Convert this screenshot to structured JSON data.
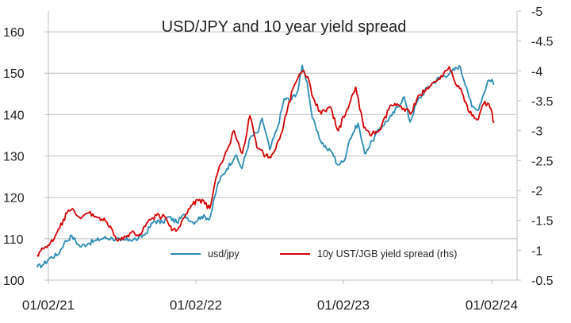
{
  "chart_data": {
    "type": "line",
    "title": "USD/JPY and 10 year yield spread",
    "xlabel": "",
    "ylabel": "",
    "x_tick_labels": [
      "01/02/21",
      "01/02/22",
      "01/02/23",
      "01/02/24"
    ],
    "y_left": {
      "ylim": [
        100,
        165
      ],
      "ticks": [
        100,
        110,
        120,
        130,
        140,
        150,
        160
      ],
      "tick_labels": [
        "100",
        "110",
        "120",
        "130",
        "140",
        "150",
        "160"
      ]
    },
    "y_right": {
      "ylim": [
        -0.5,
        -5
      ],
      "inverted": true,
      "ticks": [
        -0.5,
        -1,
        -1.5,
        -2,
        -2.5,
        -3,
        -3.5,
        -4,
        -4.5,
        -5
      ],
      "tick_labels": [
        "-0.5",
        "-1",
        "-1.5",
        "-2",
        "-2.5",
        "-3",
        "-3.5",
        "-4",
        "-4.5",
        "-5"
      ]
    },
    "grid": true,
    "legend_position": "bottom-right",
    "series": [
      {
        "name": "usd/jpy",
        "axis": "left",
        "color": "#2a8bb5",
        "points": [
          [
            "2021-01-04",
            103.1
          ],
          [
            "2021-01-20",
            103.8
          ],
          [
            "2021-02-05",
            105.4
          ],
          [
            "2021-02-25",
            106.2
          ],
          [
            "2021-03-12",
            109.0
          ],
          [
            "2021-03-31",
            110.7
          ],
          [
            "2021-04-20",
            108.1
          ],
          [
            "2021-05-10",
            108.9
          ],
          [
            "2021-05-31",
            109.6
          ],
          [
            "2021-06-18",
            110.2
          ],
          [
            "2021-07-09",
            110.1
          ],
          [
            "2021-07-30",
            109.5
          ],
          [
            "2021-08-20",
            109.8
          ],
          [
            "2021-09-10",
            109.9
          ],
          [
            "2021-09-30",
            111.3
          ],
          [
            "2021-10-20",
            114.3
          ],
          [
            "2021-11-10",
            113.9
          ],
          [
            "2021-11-24",
            115.3
          ],
          [
            "2021-12-15",
            114.0
          ],
          [
            "2022-01-04",
            115.8
          ],
          [
            "2022-01-24",
            113.9
          ],
          [
            "2022-02-14",
            115.4
          ],
          [
            "2022-03-07",
            115.0
          ],
          [
            "2022-03-28",
            123.7
          ],
          [
            "2022-04-18",
            126.9
          ],
          [
            "2022-05-09",
            130.2
          ],
          [
            "2022-05-25",
            127.0
          ],
          [
            "2022-06-15",
            134.5
          ],
          [
            "2022-07-05",
            135.9
          ],
          [
            "2022-07-14",
            139.1
          ],
          [
            "2022-08-02",
            131.5
          ],
          [
            "2022-08-22",
            137.3
          ],
          [
            "2022-09-07",
            143.9
          ],
          [
            "2022-09-22",
            143.5
          ],
          [
            "2022-10-10",
            145.6
          ],
          [
            "2022-10-21",
            151.9
          ],
          [
            "2022-11-02",
            147.9
          ],
          [
            "2022-11-15",
            139.2
          ],
          [
            "2022-12-02",
            134.3
          ],
          [
            "2022-12-20",
            131.8
          ],
          [
            "2023-01-03",
            130.9
          ],
          [
            "2023-01-16",
            127.9
          ],
          [
            "2023-02-01",
            128.7
          ],
          [
            "2023-02-15",
            134.0
          ],
          [
            "2023-03-08",
            137.9
          ],
          [
            "2023-03-24",
            130.6
          ],
          [
            "2023-04-12",
            133.6
          ],
          [
            "2023-05-02",
            136.9
          ],
          [
            "2023-05-30",
            139.7
          ],
          [
            "2023-06-30",
            144.3
          ],
          [
            "2023-07-14",
            138.2
          ],
          [
            "2023-08-01",
            143.2
          ],
          [
            "2023-08-29",
            146.8
          ],
          [
            "2023-09-26",
            149.0
          ],
          [
            "2023-10-20",
            149.9
          ],
          [
            "2023-11-13",
            151.8
          ],
          [
            "2023-12-01",
            146.7
          ],
          [
            "2023-12-14",
            141.9
          ],
          [
            "2023-12-28",
            141.0
          ],
          [
            "2024-01-12",
            145.0
          ],
          [
            "2024-01-23",
            148.2
          ],
          [
            "2024-02-02",
            148.5
          ],
          [
            "2024-02-06",
            147.2
          ]
        ]
      },
      {
        "name": "10y UST/JGB yield spread (rhs)",
        "axis": "right",
        "color": "#d40000",
        "points": [
          [
            "2021-01-04",
            -0.92
          ],
          [
            "2021-01-25",
            -1.06
          ],
          [
            "2021-02-12",
            -1.15
          ],
          [
            "2021-03-01",
            -1.37
          ],
          [
            "2021-03-19",
            -1.62
          ],
          [
            "2021-04-05",
            -1.67
          ],
          [
            "2021-04-22",
            -1.53
          ],
          [
            "2021-05-12",
            -1.63
          ],
          [
            "2021-06-04",
            -1.55
          ],
          [
            "2021-06-25",
            -1.48
          ],
          [
            "2021-07-19",
            -1.18
          ],
          [
            "2021-08-05",
            -1.18
          ],
          [
            "2021-08-25",
            -1.3
          ],
          [
            "2021-09-15",
            -1.27
          ],
          [
            "2021-10-05",
            -1.48
          ],
          [
            "2021-10-26",
            -1.58
          ],
          [
            "2021-11-18",
            -1.55
          ],
          [
            "2021-12-03",
            -1.33
          ],
          [
            "2021-12-20",
            -1.38
          ],
          [
            "2022-01-03",
            -1.55
          ],
          [
            "2022-01-20",
            -1.75
          ],
          [
            "2022-02-10",
            -1.85
          ],
          [
            "2022-03-07",
            -1.7
          ],
          [
            "2022-03-25",
            -2.27
          ],
          [
            "2022-04-12",
            -2.58
          ],
          [
            "2022-05-06",
            -3.0
          ],
          [
            "2022-05-26",
            -2.62
          ],
          [
            "2022-06-14",
            -3.25
          ],
          [
            "2022-07-01",
            -2.72
          ],
          [
            "2022-07-29",
            -2.55
          ],
          [
            "2022-08-10",
            -2.62
          ],
          [
            "2022-08-30",
            -2.95
          ],
          [
            "2022-09-28",
            -3.7
          ],
          [
            "2022-10-21",
            -3.99
          ],
          [
            "2022-11-04",
            -3.9
          ],
          [
            "2022-11-17",
            -3.55
          ],
          [
            "2022-12-07",
            -3.28
          ],
          [
            "2022-12-28",
            -3.4
          ],
          [
            "2023-01-18",
            -3.0
          ],
          [
            "2023-02-08",
            -3.35
          ],
          [
            "2023-03-02",
            -3.73
          ],
          [
            "2023-03-22",
            -3.05
          ],
          [
            "2023-04-06",
            -2.93
          ],
          [
            "2023-05-03",
            -3.02
          ],
          [
            "2023-05-26",
            -3.42
          ],
          [
            "2023-06-22",
            -3.41
          ],
          [
            "2023-07-18",
            -3.3
          ],
          [
            "2023-08-03",
            -3.58
          ],
          [
            "2023-08-28",
            -3.7
          ],
          [
            "2023-09-29",
            -3.92
          ],
          [
            "2023-10-19",
            -4.07
          ],
          [
            "2023-11-01",
            -3.83
          ],
          [
            "2023-11-20",
            -3.63
          ],
          [
            "2023-12-08",
            -3.3
          ],
          [
            "2023-12-27",
            -3.18
          ],
          [
            "2024-01-12",
            -3.45
          ],
          [
            "2024-01-25",
            -3.45
          ],
          [
            "2024-02-02",
            -3.3
          ],
          [
            "2024-02-06",
            -3.13
          ]
        ]
      }
    ]
  }
}
